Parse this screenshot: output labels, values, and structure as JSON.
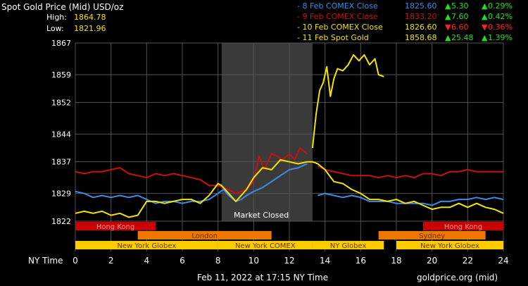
{
  "header": {
    "title": "Spot Gold Price (Mid) USD/oz",
    "high_label": "High:",
    "high_value": "1864.78",
    "low_label": "Low:",
    "low_value": "1821.96"
  },
  "legend": [
    {
      "label": "- 8 Feb COMEX Close",
      "price": "1825.60",
      "change": "5.30",
      "pct": "0.29%",
      "direction": "up",
      "color": "#3a8ee6"
    },
    {
      "label": "- 9 Feb COMEX Close",
      "price": "1833.20",
      "change": "7.60",
      "pct": "0.42%",
      "direction": "up",
      "color": "#cc1010"
    },
    {
      "label": "- 10 Feb COMEX Close",
      "price": "1826.60",
      "change": "6.60",
      "pct": "0.36%",
      "direction": "down",
      "color": "#f2e400"
    },
    {
      "label": "- 11 Feb Spot Gold",
      "price": "1858.68",
      "change": "25.48",
      "pct": "1.39%",
      "direction": "up",
      "color": "#f2e400"
    }
  ],
  "colors": {
    "up": "#22dd22",
    "down": "#ff2222",
    "grid": "#555555",
    "closed_shade": "#3a3a3a",
    "hong_kong": "#cc0000",
    "london": "#ee7700",
    "new_york": "#ffcc00",
    "sydney": "#ee7700"
  },
  "market_closed_label": "Market Closed",
  "x_axis_label": "NY Time",
  "footer": {
    "timestamp": "Feb 11, 2022 at 17:15 NY Time",
    "source": "goldprice.org (mid)"
  },
  "sessions": [
    {
      "row": 0,
      "start": 0,
      "end": 4.5,
      "label": "Hong Kong",
      "color": "#cc0000"
    },
    {
      "row": 0,
      "start": 19.5,
      "end": 24,
      "label": "Hong Kong",
      "color": "#cc0000"
    },
    {
      "row": 1,
      "start": 3.5,
      "end": 11,
      "label": "London",
      "color": "#ee7700"
    },
    {
      "row": 1,
      "start": 17,
      "end": 23,
      "label": "Sydney",
      "color": "#ee7700"
    },
    {
      "row": 2,
      "start": 0,
      "end": 8,
      "label": "New York Globex",
      "color": "#ffcc00"
    },
    {
      "row": 2,
      "start": 8,
      "end": 13.3,
      "label": "New York COMEX",
      "color": "#ffcc00"
    },
    {
      "row": 2,
      "start": 13.3,
      "end": 17.3,
      "label": "NY Globex",
      "color": "#ffcc00"
    },
    {
      "row": 2,
      "start": 18,
      "end": 24,
      "label": "New York Globex",
      "color": "#ffcc00"
    }
  ],
  "chart_data": {
    "type": "line",
    "title": "Spot Gold Price (Mid) USD/oz",
    "xlabel": "NY Time",
    "ylabel": "",
    "xlim": [
      0,
      24
    ],
    "ylim": [
      1822,
      1867
    ],
    "xticks": [
      0,
      2,
      4,
      6,
      8,
      10,
      12,
      14,
      16,
      18,
      20,
      22,
      24
    ],
    "yticks": [
      1822,
      1829,
      1837,
      1844,
      1852,
      1859,
      1867
    ],
    "grid": true,
    "closed_shade": [
      8.2,
      13.3
    ],
    "series": [
      {
        "name": "8 Feb COMEX Close",
        "color": "#3a8ee6",
        "x": [
          0,
          0.5,
          1,
          1.5,
          2,
          2.5,
          3,
          3.5,
          4,
          4.5,
          5,
          5.5,
          6,
          6.5,
          7,
          7.5,
          8,
          8.3,
          8.6,
          9,
          9.3,
          9.6,
          10,
          10.5,
          11,
          11.5,
          12,
          12.5,
          13,
          13.3,
          13.6,
          14,
          14.5,
          15,
          15.5,
          16,
          16.5,
          17,
          17.5,
          18,
          18.5,
          19,
          19.5,
          20,
          20.5,
          21,
          21.5,
          22,
          22.5,
          23,
          23.5,
          24
        ],
        "y": [
          1829.5,
          1829.0,
          1828.0,
          1828.5,
          1828.0,
          1828.5,
          1828.0,
          1828.5,
          1827.5,
          1826.5,
          1827.0,
          1827.0,
          1826.5,
          1827.0,
          1827.0,
          1827.5,
          1829.0,
          1830.0,
          1828.5,
          1827.0,
          1827.5,
          1828.5,
          1829.5,
          1830.5,
          1832.0,
          1833.5,
          1835.0,
          1835.5,
          1836.5,
          null,
          1828.5,
          1829.0,
          1828.5,
          1828.0,
          1828.5,
          1828.0,
          1827.0,
          1827.0,
          1827.0,
          1826.5,
          1826.5,
          1826.5,
          1826.5,
          1826.0,
          1827.0,
          1827.0,
          1827.5,
          1827.5,
          1828.0,
          1827.5,
          1828.0,
          1827.5
        ]
      },
      {
        "name": "9 Feb COMEX Close",
        "color": "#cc1010",
        "x": [
          0,
          0.5,
          1,
          1.5,
          2,
          2.5,
          3,
          3.5,
          4,
          4.5,
          5,
          5.5,
          6,
          6.5,
          7,
          7.5,
          8,
          8.3,
          8.6,
          9,
          9.3,
          9.6,
          10,
          10.3,
          10.6,
          11,
          11.3,
          11.6,
          12,
          12.3,
          12.6,
          13,
          13.3,
          13.6,
          14,
          14.5,
          15,
          15.5,
          16,
          16.5,
          17,
          17.5,
          18,
          18.5,
          19,
          19.5,
          20,
          20.5,
          21,
          21.5,
          22,
          22.5,
          23,
          23.5,
          24
        ],
        "y": [
          1834.5,
          1834.0,
          1834.5,
          1834.5,
          1835.0,
          1835.5,
          1834.0,
          1833.5,
          1833.0,
          1834.0,
          1833.5,
          1834.0,
          1833.5,
          1833.0,
          1832.5,
          1831.0,
          1831.0,
          1830.5,
          1830.0,
          1829.0,
          1829.5,
          1830.0,
          1832.0,
          1838.5,
          1835.0,
          1839.0,
          1838.5,
          1837.5,
          1839.0,
          1837.5,
          1840.5,
          1839.0,
          null,
          1836.0,
          1835.0,
          1834.5,
          1834.0,
          1833.5,
          1833.5,
          1833.5,
          1833.0,
          1833.5,
          1833.0,
          1833.5,
          1833.0,
          1834.0,
          1834.0,
          1833.5,
          1834.5,
          1834.5,
          1835.0,
          1834.5,
          1834.5,
          1834.5,
          1834.5
        ]
      },
      {
        "name": "10 Feb COMEX Close",
        "color": "#f2e400",
        "x": [
          0,
          0.5,
          1,
          1.5,
          2,
          2.5,
          3,
          3.5,
          4,
          4.5,
          5,
          5.5,
          6,
          6.5,
          7,
          7.5,
          8,
          8.2,
          8.6,
          9,
          9.3,
          9.6,
          10,
          10.5,
          11,
          11.5,
          12,
          12.5,
          13,
          13.3,
          13.6,
          14,
          14.5,
          15,
          15.5,
          16,
          16.5,
          17,
          17.5,
          18,
          18.5,
          19,
          19.5,
          20,
          20.5,
          21,
          21.5,
          22,
          22.5,
          23,
          23.5,
          24
        ],
        "y": [
          1824.0,
          1824.5,
          1824.0,
          1824.5,
          1823.5,
          1824.0,
          1823.0,
          1823.5,
          1827.0,
          1827.0,
          1826.5,
          1827.0,
          1827.5,
          1827.5,
          1826.5,
          1828.5,
          1831.5,
          1831.0,
          1829.0,
          1827.0,
          1828.5,
          1830.0,
          1833.0,
          1835.5,
          1835.0,
          1837.5,
          1837.0,
          1836.5,
          1837.0,
          1837.0,
          1836.5,
          1835.0,
          1832.0,
          1831.5,
          1830.0,
          1829.0,
          1827.5,
          1827.5,
          1827.0,
          1827.5,
          1826.5,
          1827.0,
          1826.0,
          1825.0,
          1825.5,
          1825.5,
          1826.5,
          1825.5,
          1826.5,
          1825.5,
          1825.0,
          1824.0
        ]
      },
      {
        "name": "11 Feb Spot Gold",
        "color": "#f2e400",
        "x": [
          13.3,
          13.5,
          13.7,
          13.9,
          14.0,
          14.1,
          14.3,
          14.5,
          14.7,
          15.0,
          15.3,
          15.6,
          15.9,
          16.2,
          16.5,
          16.8,
          17.0,
          17.3
        ],
        "y": [
          1840.5,
          1849.0,
          1855.0,
          1857.0,
          1859.0,
          1861.0,
          1853.5,
          1858.0,
          1860.5,
          1860.0,
          1861.5,
          1864.0,
          1862.5,
          1864.0,
          1861.5,
          1863.0,
          1859.0,
          1858.5
        ]
      }
    ]
  }
}
